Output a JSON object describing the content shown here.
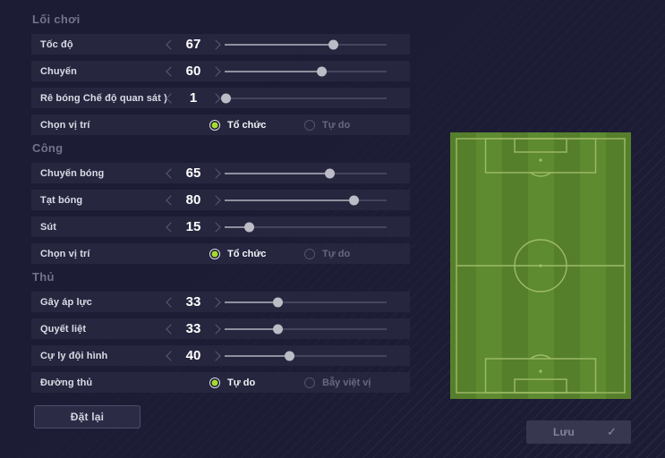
{
  "theme": {
    "background": "#1c1c34",
    "row_background": "#26263f",
    "accent_green": "#a6da30",
    "pitch_green_dark": "#567f2b",
    "pitch_green_light": "#5e8a30",
    "pitch_line": "#a2bf6c",
    "slider_fill": "#90909f",
    "slider_track": "#45455d"
  },
  "sections": [
    {
      "title": "Lối chơi",
      "rows": [
        {
          "type": "slider",
          "label": "Tốc độ",
          "value": 67,
          "min": 0,
          "max": 100
        },
        {
          "type": "slider",
          "label": "Chuyến",
          "value": 60,
          "min": 0,
          "max": 100
        },
        {
          "type": "slider",
          "label": "Rê bóng Chế độ quan sát )",
          "value": 1,
          "min": 0,
          "max": 100
        },
        {
          "type": "radio",
          "label": "Chọn vị trí",
          "options": [
            {
              "label": "Tổ chức",
              "selected": true
            },
            {
              "label": "Tự do",
              "selected": false
            }
          ]
        }
      ]
    },
    {
      "title": "Công",
      "rows": [
        {
          "type": "slider",
          "label": "Chuyến bóng",
          "value": 65,
          "min": 0,
          "max": 100
        },
        {
          "type": "slider",
          "label": "Tạt bóng",
          "value": 80,
          "min": 0,
          "max": 100
        },
        {
          "type": "slider",
          "label": "Sút",
          "value": 15,
          "min": 0,
          "max": 100
        },
        {
          "type": "radio",
          "label": "Chọn vị trí",
          "options": [
            {
              "label": "Tổ chức",
              "selected": true
            },
            {
              "label": "Tự do",
              "selected": false
            }
          ]
        }
      ]
    },
    {
      "title": "Thủ",
      "rows": [
        {
          "type": "slider",
          "label": "Gây áp lực",
          "value": 33,
          "min": 0,
          "max": 100
        },
        {
          "type": "slider",
          "label": "Quyết liệt",
          "value": 33,
          "min": 0,
          "max": 100
        },
        {
          "type": "slider",
          "label": "Cự ly đội hình",
          "value": 40,
          "min": 0,
          "max": 100
        },
        {
          "type": "radio",
          "label": "Đường thủ",
          "options": [
            {
              "label": "Tự do",
              "selected": true
            },
            {
              "label": "Bẫy việt vị",
              "selected": false
            }
          ]
        }
      ]
    }
  ],
  "buttons": {
    "reset": "Đặt lại",
    "save": "Lưu",
    "save_check": "✓"
  },
  "pitch": {
    "description": "football-pitch-diagram"
  }
}
